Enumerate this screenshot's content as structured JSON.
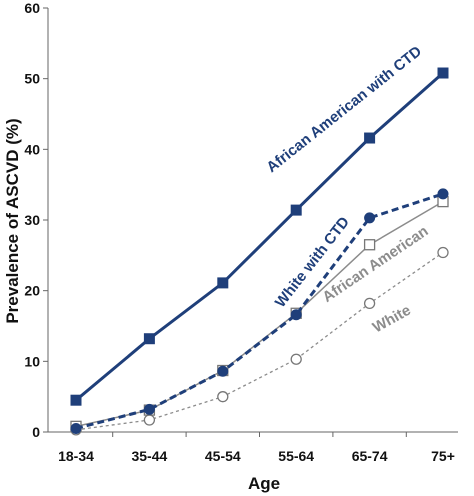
{
  "chart_data": {
    "type": "line",
    "title": "",
    "xlabel": "Age",
    "ylabel": "Prevalence of ASCVD (%)",
    "categories": [
      "18-34",
      "35-44",
      "45-54",
      "55-64",
      "65-74",
      "75+"
    ],
    "ylim": [
      0,
      60
    ],
    "yticks": [
      0,
      10,
      20,
      30,
      40,
      50,
      60
    ],
    "grid": false,
    "legend": "inline labels along lines",
    "series": [
      {
        "name": "African American with CTD",
        "values": [
          4.5,
          13.2,
          21.1,
          31.4,
          41.6,
          50.8
        ],
        "color": "#1f3f7a",
        "style": "solid",
        "marker": "filled-square"
      },
      {
        "name": "White with CTD",
        "values": [
          0.5,
          3.2,
          8.6,
          16.6,
          30.3,
          33.7
        ],
        "color": "#1f3f7a",
        "style": "dashed",
        "marker": "filled-circle"
      },
      {
        "name": "African American",
        "values": [
          0.8,
          3.1,
          8.7,
          16.8,
          26.5,
          32.6
        ],
        "color": "#8c8c8c",
        "style": "solid",
        "marker": "open-square"
      },
      {
        "name": "White",
        "values": [
          0.3,
          1.7,
          5.0,
          10.3,
          18.2,
          25.4
        ],
        "color": "#8c8c8c",
        "style": "dotted",
        "marker": "open-circle"
      }
    ]
  }
}
